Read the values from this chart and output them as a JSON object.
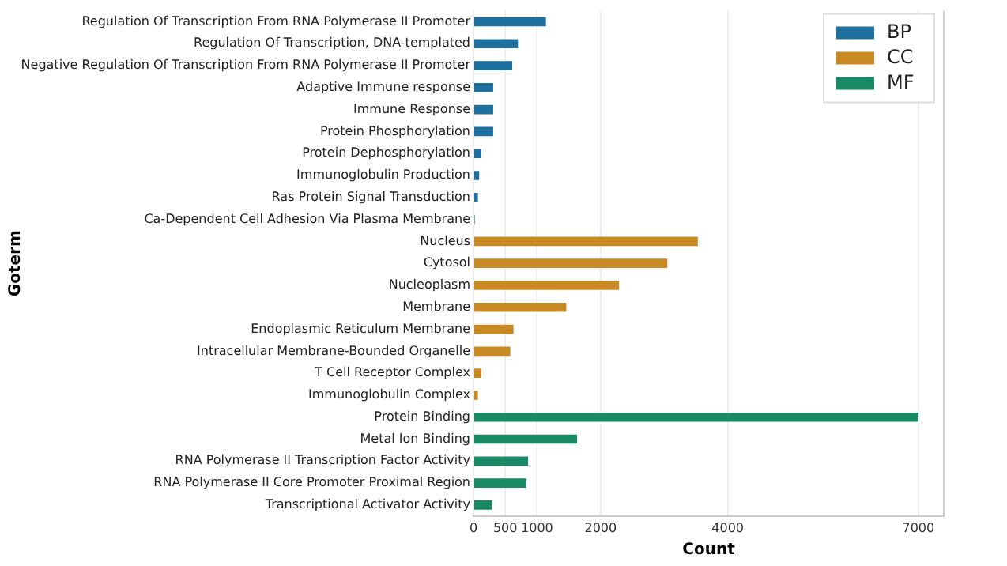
{
  "chart_data": {
    "type": "bar",
    "orientation": "horizontal",
    "xlabel": "Count",
    "ylabel": "Goterm",
    "categories": [
      "Regulation Of Transcription From RNA Polymerase II Promoter",
      "Regulation Of Transcription, DNA-templated",
      "Negative Regulation Of Transcription From RNA Polymerase II Promoter",
      "Adaptive Immune response",
      "Immune Response",
      "Protein Phosphorylation",
      "Protein Dephosphorylation",
      "Immunoglobulin Production",
      "Ras Protein Signal Transduction",
      "Ca-Dependent Cell Adhesion Via Plasma Membrane",
      "Nucleus",
      "Cytosol",
      "Nucleoplasm",
      "Membrane",
      "Endoplasmic Reticulum Membrane",
      "Intracellular Membrane-Bounded Organelle",
      "T Cell Receptor Complex",
      "Immunoglobulin Complex",
      "Protein Binding",
      "Metal Ion Binding",
      "RNA Polymerase II Transcription Factor Activity",
      "RNA Polymerase II Core Promoter Proximal Region",
      "Transcriptional Activator Activity"
    ],
    "series": [
      {
        "name": "BP",
        "color": "#1f6f9f",
        "values": [
          1140,
          700,
          610,
          310,
          310,
          310,
          120,
          90,
          70,
          20,
          null,
          null,
          null,
          null,
          null,
          null,
          null,
          null,
          null,
          null,
          null,
          null,
          null
        ]
      },
      {
        "name": "CC",
        "color": "#c98a23",
        "values": [
          null,
          null,
          null,
          null,
          null,
          null,
          null,
          null,
          null,
          null,
          3530,
          3050,
          2290,
          1460,
          630,
          580,
          120,
          70,
          null,
          null,
          null,
          null,
          null
        ]
      },
      {
        "name": "MF",
        "color": "#1a8a66",
        "values": [
          null,
          null,
          null,
          null,
          null,
          null,
          null,
          null,
          null,
          null,
          null,
          null,
          null,
          null,
          null,
          null,
          null,
          null,
          7000,
          1630,
          860,
          830,
          290
        ]
      }
    ],
    "xlim": [
      0,
      7400
    ],
    "xticks": [
      0,
      500,
      1000,
      2000,
      4000,
      7000
    ],
    "grid": "x",
    "legend": "top right"
  }
}
